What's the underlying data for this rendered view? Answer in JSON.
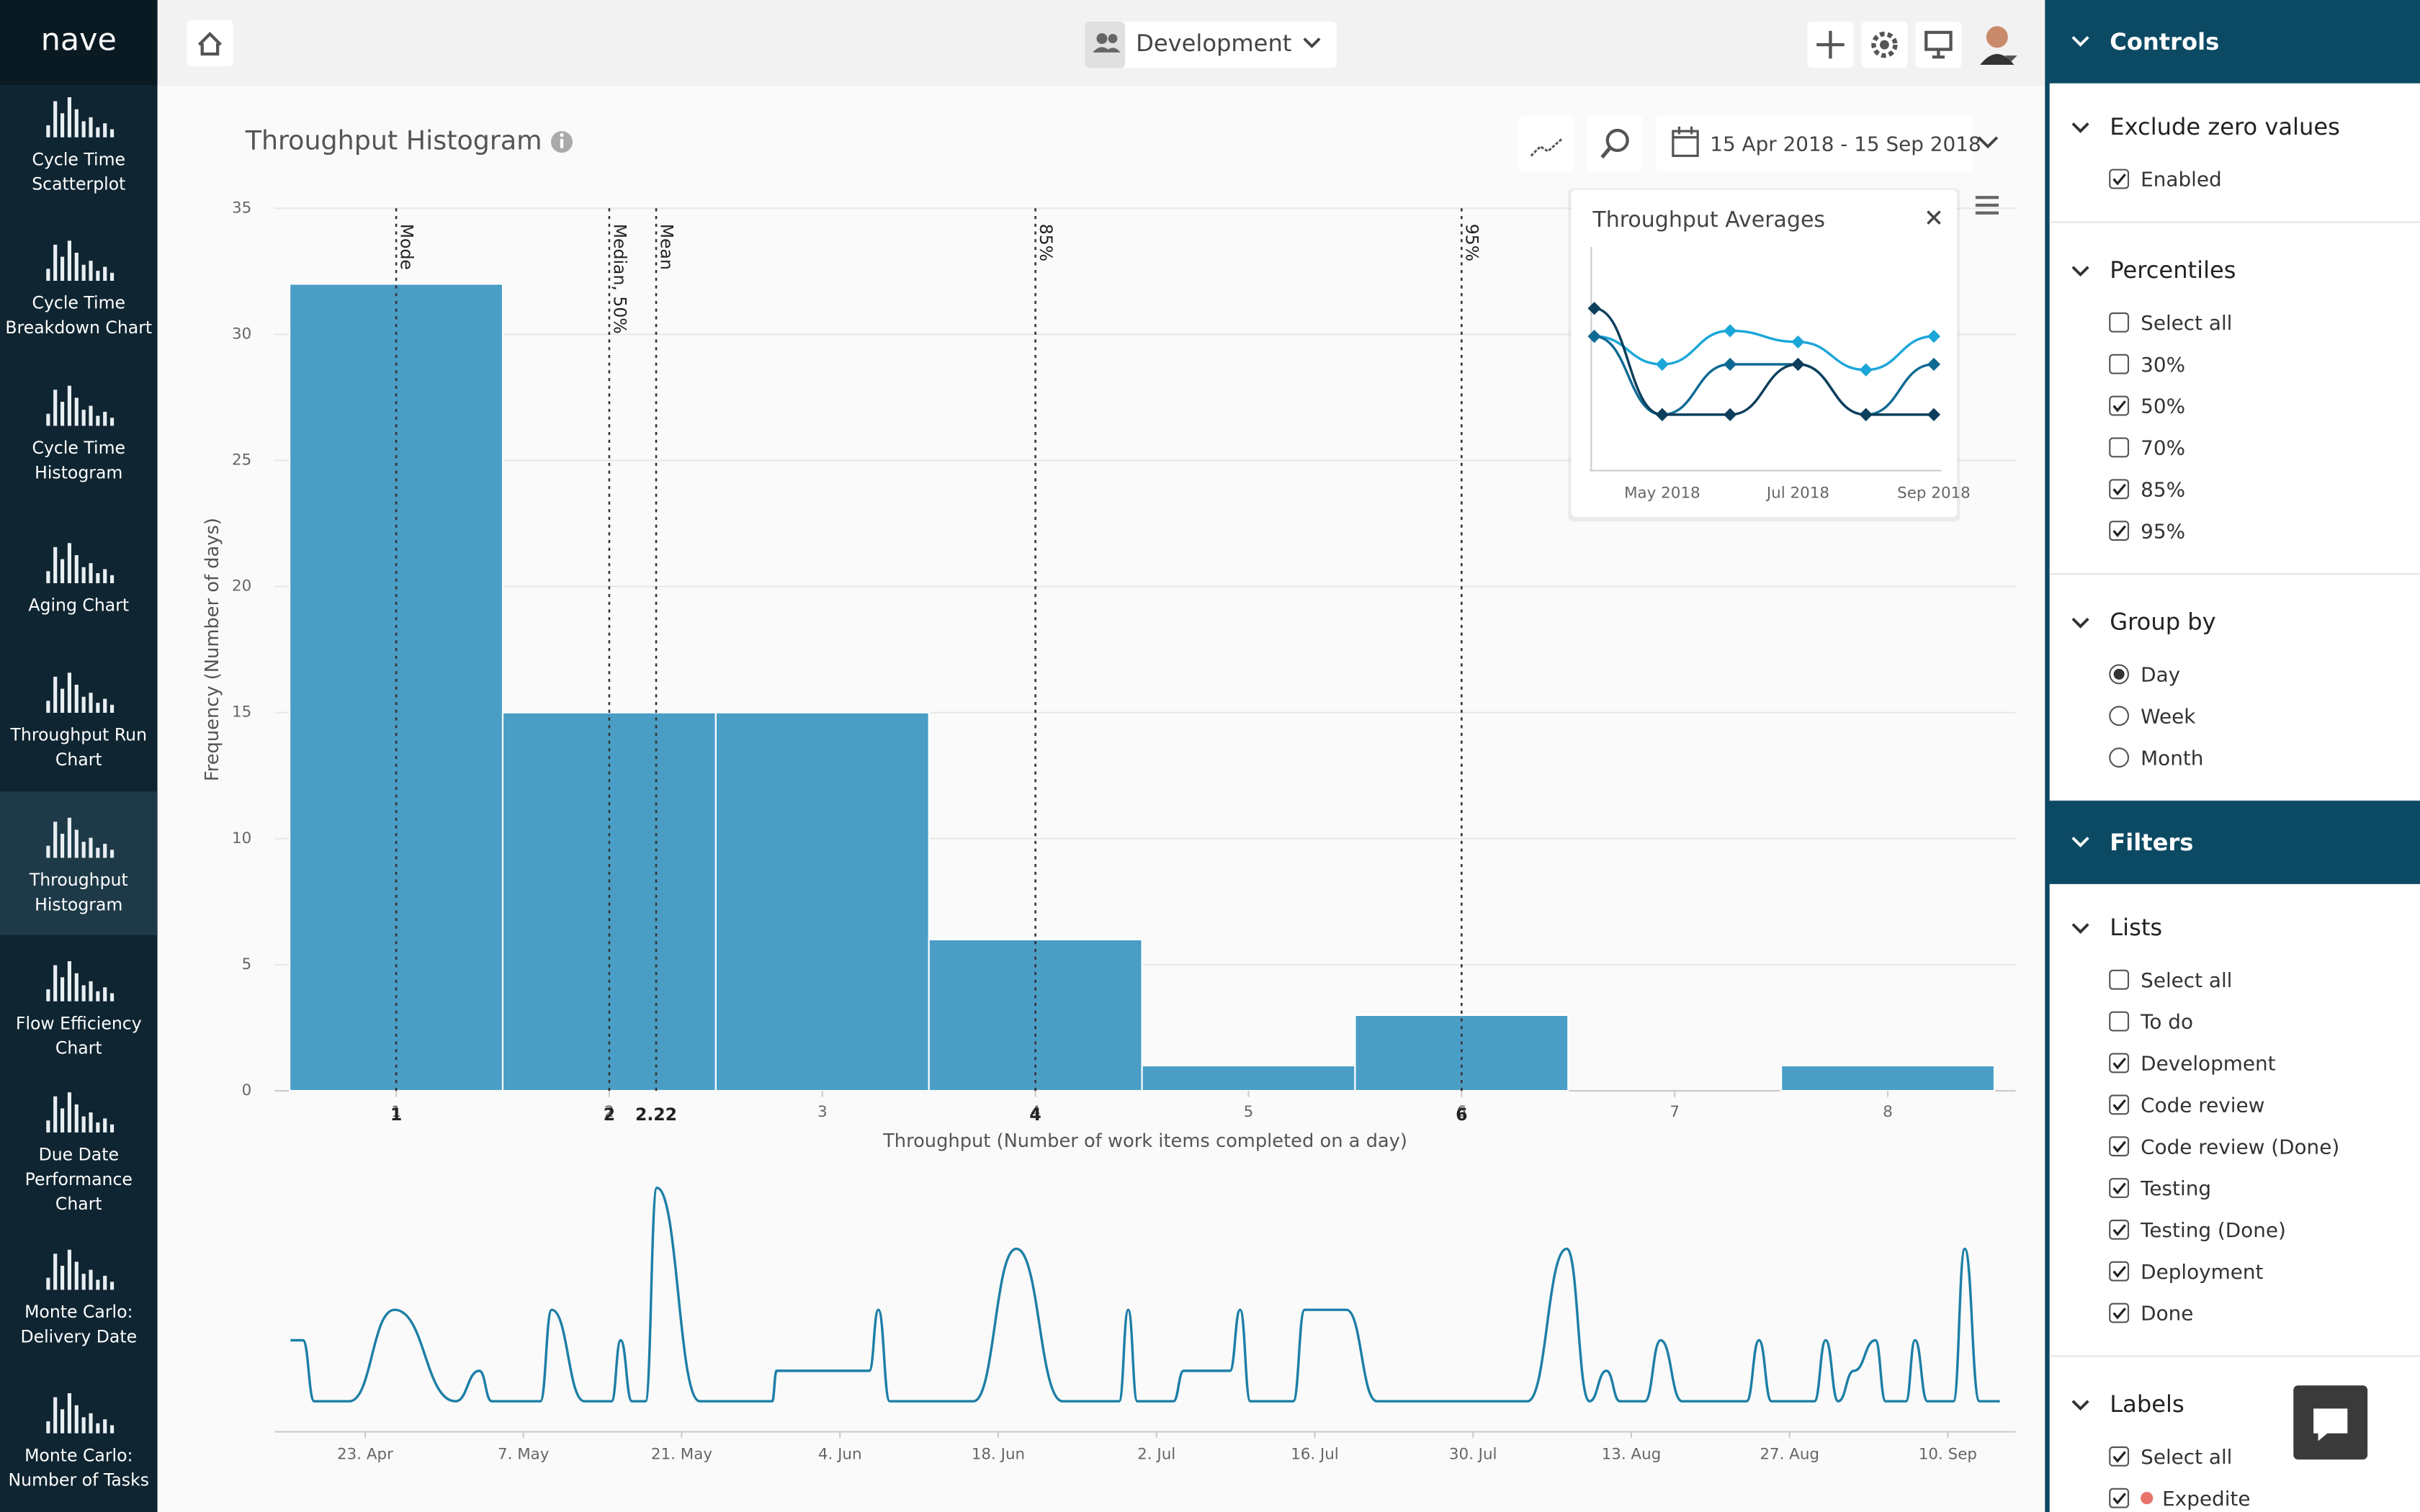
{
  "brand": "nave",
  "nav": [
    {
      "label": [
        "Cycle Time",
        "Scatterplot"
      ],
      "active": false
    },
    {
      "label": [
        "Cycle Time",
        "Breakdown Chart"
      ],
      "active": false
    },
    {
      "label": [
        "Cycle Time",
        "Histogram"
      ],
      "active": false
    },
    {
      "label": [
        "Aging Chart"
      ],
      "active": false
    },
    {
      "label": [
        "Throughput Run",
        "Chart"
      ],
      "active": false
    },
    {
      "label": [
        "Throughput",
        "Histogram"
      ],
      "active": true
    },
    {
      "label": [
        "Flow Efficiency",
        "Chart"
      ],
      "active": false
    },
    {
      "label": [
        "Due Date",
        "Performance",
        "Chart"
      ],
      "active": false
    },
    {
      "label": [
        "Monte Carlo:",
        "Delivery Date"
      ],
      "active": false
    },
    {
      "label": [
        "Monte Carlo:",
        "Number of Tasks"
      ],
      "active": false
    }
  ],
  "header": {
    "team": "Development",
    "date_range": "15 Apr 2018 - 15 Sep 2018"
  },
  "chart_data": [
    {
      "type": "bar",
      "title": "Throughput Histogram",
      "x_label": "Throughput (Number of work items completed on a day)",
      "y_label": "Frequency (Number of days)",
      "x": [
        1,
        2,
        3,
        4,
        5,
        6,
        7,
        8
      ],
      "values": [
        32,
        15,
        15,
        6,
        1,
        3,
        0,
        1
      ],
      "color": "#4a9ec6",
      "xlim": [
        0.43,
        8.6
      ],
      "ylim": [
        0,
        35
      ],
      "xticks": [
        1,
        2,
        3,
        4,
        5,
        6,
        7,
        8
      ],
      "yticks": [
        0,
        5,
        10,
        15,
        20,
        25,
        30,
        35
      ],
      "grid": true,
      "markers": [
        {
          "label": "Mode",
          "value": 1
        },
        {
          "label": "Median, 50%",
          "value": 2
        },
        {
          "label": "Mean",
          "value": 2.22
        },
        {
          "label": "85%",
          "value": 4
        },
        {
          "label": "95%",
          "value": 6
        }
      ]
    },
    {
      "type": "line",
      "title": "Throughput Averages",
      "categories": [
        null,
        "May 2018",
        null,
        "Jul 2018",
        null,
        "Sep 2018"
      ],
      "ylim": [
        0,
        4
      ],
      "series": [
        {
          "color": "#1ba6d9",
          "values": [
            2.4,
            1.9,
            2.5,
            2.3,
            1.8,
            2.4
          ]
        },
        {
          "color": "#0f6a93",
          "values": [
            2.4,
            1.0,
            1.9,
            1.9,
            1.0,
            1.9
          ]
        },
        {
          "color": "#0d3e5c",
          "values": [
            2.9,
            1.0,
            1.0,
            1.9,
            1.0,
            1.0
          ]
        }
      ]
    },
    {
      "type": "line",
      "color": "#1d7fa6",
      "x": [
        1.4,
        2.5,
        3.5,
        6.6,
        10.6,
        16.0,
        18.1,
        19.2,
        23.5,
        24.5,
        27.4,
        29.8,
        30.6,
        31.6,
        32.8,
        33.8,
        37.6,
        44.0,
        44.4,
        52.6,
        53.4,
        54.4,
        61.8,
        65.6,
        69.7,
        74.7,
        75.5,
        76.3,
        79.5,
        80.4,
        84.5,
        85.4,
        86.3,
        90.1,
        91.1,
        94.8,
        97.5,
        110.8,
        114.3,
        116.3,
        117.8,
        119.0,
        121.2,
        122.6,
        124.5,
        130.2,
        131.3,
        132.4,
        136.2,
        137.2,
        138.3,
        139.7,
        141.6,
        142.5,
        144.3,
        145.1,
        146.2,
        148.5,
        149.5,
        150.8,
        152.6
      ],
      "values": [
        3,
        3,
        1,
        1,
        4,
        1,
        2,
        1,
        1,
        4,
        1,
        1,
        3,
        1,
        1,
        8,
        1,
        1,
        2,
        2,
        4,
        1,
        1,
        6,
        1,
        1,
        4,
        1,
        1,
        2,
        2,
        4,
        1,
        1,
        4,
        4,
        1,
        1,
        6,
        1,
        2,
        1,
        1,
        3,
        1,
        1,
        3,
        1,
        1,
        3,
        1,
        2,
        3,
        1,
        1,
        3,
        1,
        1,
        6,
        1,
        1
      ],
      "xlim": [
        0,
        154
      ],
      "ylim": [
        0,
        8.5
      ],
      "xticks": [
        {
          "value": 8,
          "label": "23. Apr"
        },
        {
          "value": 22,
          "label": "7. May"
        },
        {
          "value": 36,
          "label": "21. May"
        },
        {
          "value": 50,
          "label": "4. Jun"
        },
        {
          "value": 64,
          "label": "18. Jun"
        },
        {
          "value": 78,
          "label": "2. Jul"
        },
        {
          "value": 92,
          "label": "16. Jul"
        },
        {
          "value": 106,
          "label": "30. Jul"
        },
        {
          "value": 120,
          "label": "13. Aug"
        },
        {
          "value": 134,
          "label": "27. Aug"
        },
        {
          "value": 148,
          "label": "10. Sep"
        }
      ]
    }
  ],
  "controls": {
    "title": "Controls",
    "sections": [
      {
        "title": "Exclude zero values",
        "kind": "checkbox",
        "options": [
          {
            "label": "Enabled",
            "checked": true
          }
        ]
      },
      {
        "title": "Percentiles",
        "kind": "checkbox",
        "options": [
          {
            "label": "Select all",
            "checked": false
          },
          {
            "label": "30%",
            "checked": false
          },
          {
            "label": "50%",
            "checked": true
          },
          {
            "label": "70%",
            "checked": false
          },
          {
            "label": "85%",
            "checked": true
          },
          {
            "label": "95%",
            "checked": true
          }
        ]
      },
      {
        "title": "Group by",
        "kind": "radio",
        "options": [
          {
            "label": "Day",
            "checked": true
          },
          {
            "label": "Week",
            "checked": false
          },
          {
            "label": "Month",
            "checked": false
          }
        ]
      }
    ]
  },
  "filters": {
    "title": "Filters",
    "sections": [
      {
        "title": "Lists",
        "kind": "checkbox",
        "options": [
          {
            "label": "Select all",
            "checked": false
          },
          {
            "label": "To do",
            "checked": false
          },
          {
            "label": "Development",
            "checked": true
          },
          {
            "label": "Code review",
            "checked": true
          },
          {
            "label": "Code review (Done)",
            "checked": true
          },
          {
            "label": "Testing",
            "checked": true
          },
          {
            "label": "Testing (Done)",
            "checked": true
          },
          {
            "label": "Deployment",
            "checked": true
          },
          {
            "label": "Done",
            "checked": true
          }
        ]
      },
      {
        "title": "Labels",
        "kind": "checkbox",
        "options": [
          {
            "label": "Select all",
            "checked": true
          },
          {
            "label": "Expedite",
            "checked": true,
            "color": "#e8736c"
          }
        ]
      }
    ]
  }
}
